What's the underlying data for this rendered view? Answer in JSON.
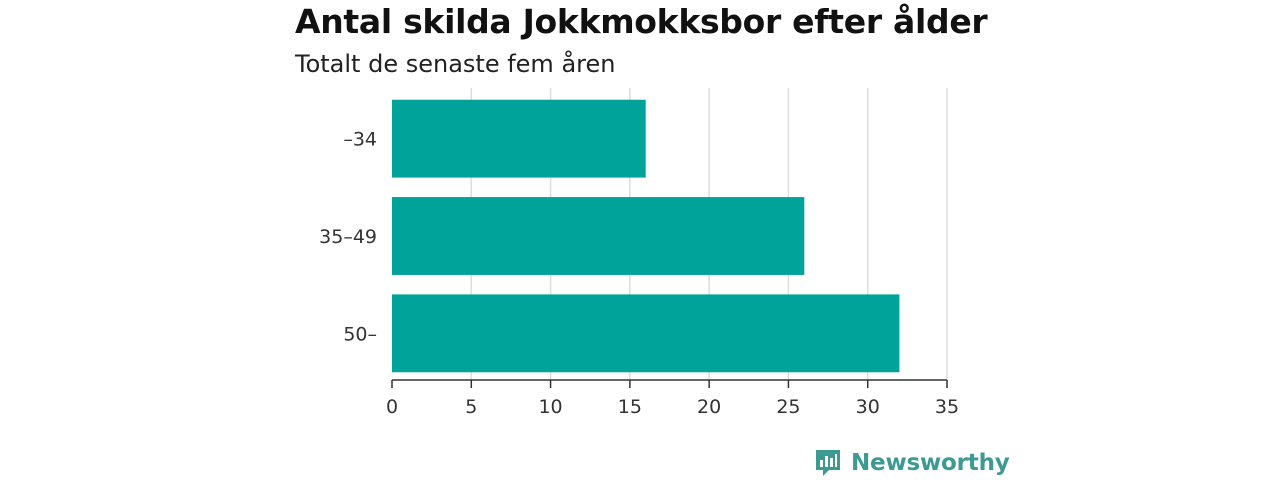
{
  "chart_data": {
    "type": "bar",
    "orientation": "horizontal",
    "title": "Antal skilda Jokkmokksbor efter ålder",
    "subtitle": "Totalt de senaste fem åren",
    "categories": [
      "–34",
      "35–49",
      "50–"
    ],
    "values": [
      16,
      26,
      32
    ],
    "xlim": [
      0,
      35
    ],
    "xticks": [
      "0",
      "5",
      "10",
      "15",
      "20",
      "25",
      "30",
      "35"
    ],
    "grid": true,
    "bar_color": "#00a39a"
  },
  "brand": {
    "name": "Newsworthy",
    "color": "#3c9a92",
    "icon": "newsworthy-logo-icon"
  }
}
